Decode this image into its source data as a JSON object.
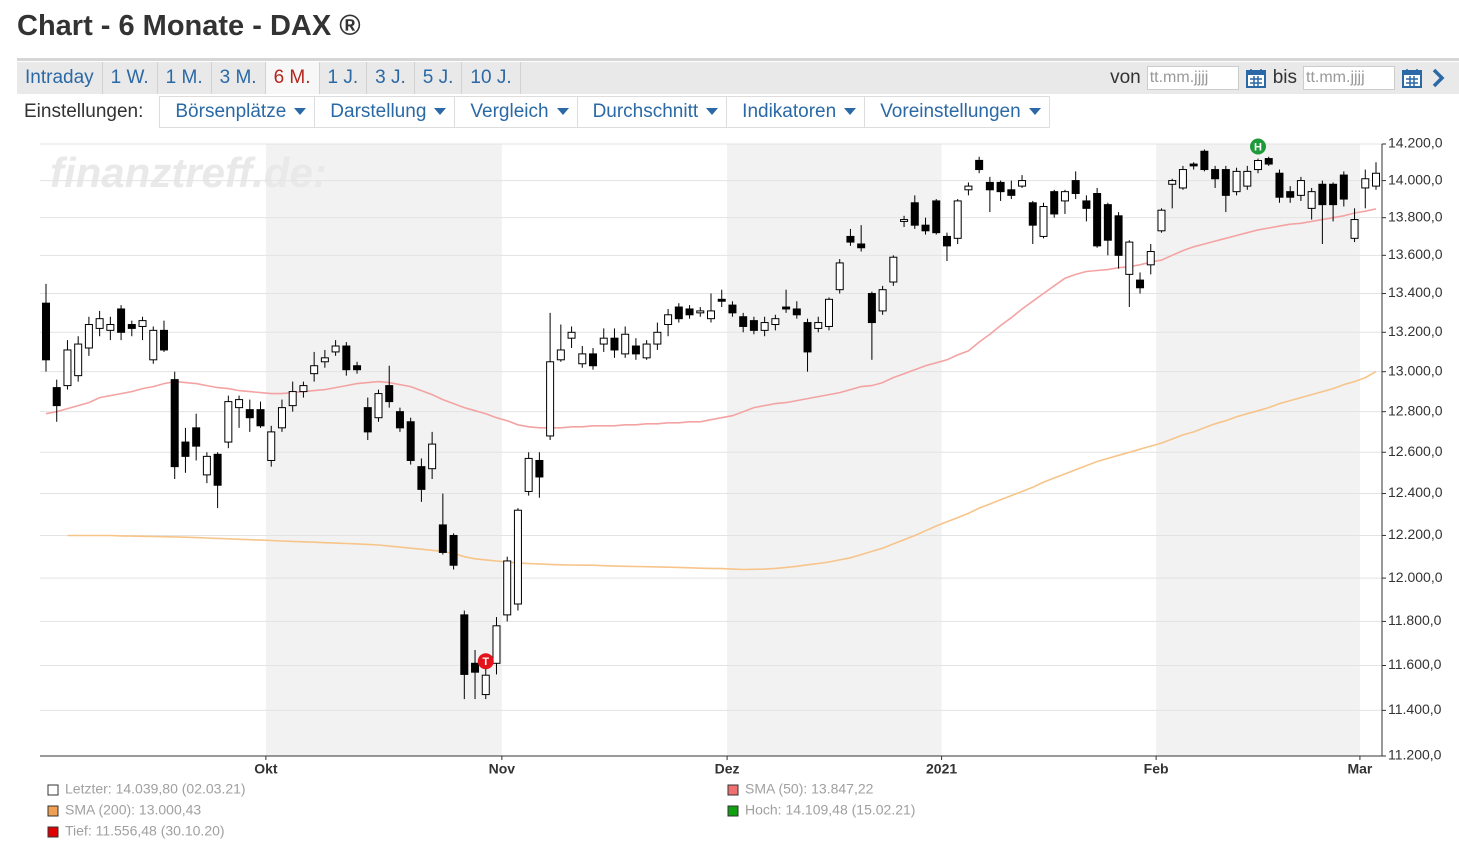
{
  "header": {
    "title": "Chart - 6 Monate - DAX ®"
  },
  "tabs": [
    {
      "label": "Intraday"
    },
    {
      "label": "1 W."
    },
    {
      "label": "1 M."
    },
    {
      "label": "3 M."
    },
    {
      "label": "6 M.",
      "active": true
    },
    {
      "label": "1 J."
    },
    {
      "label": "3 J."
    },
    {
      "label": "5 J."
    },
    {
      "label": "10 J."
    }
  ],
  "range": {
    "from_label": "von",
    "from_placeholder": "tt.mm.jjjj",
    "to_label": "bis",
    "to_placeholder": "tt.mm.jjjj"
  },
  "settings": {
    "label": "Einstellungen:",
    "menus": [
      "Börsenplätze",
      "Darstellung",
      "Vergleich",
      "Durchschnitt",
      "Indikatoren",
      "Voreinstellungen"
    ]
  },
  "chart_data": {
    "type": "candlestick",
    "watermark": "finanztreff.de:",
    "log": true,
    "grid": true,
    "ylim": [
      11200,
      14200
    ],
    "yticks": [
      {
        "value": 11200,
        "label": "11.200,0"
      },
      {
        "value": 11400,
        "label": "11.400,0"
      },
      {
        "value": 11600,
        "label": "11.600,0"
      },
      {
        "value": 11800,
        "label": "11.800,0"
      },
      {
        "value": 12000,
        "label": "12.000,0"
      },
      {
        "value": 12200,
        "label": "12.200,0"
      },
      {
        "value": 12400,
        "label": "12.400,0"
      },
      {
        "value": 12600,
        "label": "12.600,0"
      },
      {
        "value": 12800,
        "label": "12.800,0"
      },
      {
        "value": 13000,
        "label": "13.000,0"
      },
      {
        "value": 13200,
        "label": "13.200,0"
      },
      {
        "value": 13400,
        "label": "13.400,0"
      },
      {
        "value": 13600,
        "label": "13.600,0"
      },
      {
        "value": 13800,
        "label": "13.800,0"
      },
      {
        "value": 14000,
        "label": "14.000,0"
      },
      {
        "value": 14200,
        "label": "14.200,0"
      }
    ],
    "categories": [
      null,
      null,
      null,
      null,
      null,
      null,
      null,
      null,
      null,
      null,
      null,
      null,
      null,
      null,
      null,
      null,
      null,
      null,
      null,
      null,
      null,
      "Okt",
      null,
      null,
      null,
      null,
      null,
      null,
      null,
      null,
      null,
      null,
      null,
      null,
      null,
      null,
      null,
      null,
      null,
      null,
      null,
      null,
      null,
      "Nov",
      null,
      null,
      null,
      null,
      null,
      null,
      null,
      null,
      null,
      null,
      null,
      null,
      null,
      null,
      null,
      null,
      null,
      null,
      null,
      null,
      "Dez",
      null,
      null,
      null,
      null,
      null,
      null,
      null,
      null,
      null,
      null,
      null,
      null,
      null,
      null,
      null,
      null,
      null,
      null,
      null,
      "2021",
      null,
      null,
      null,
      null,
      null,
      null,
      null,
      null,
      null,
      null,
      null,
      null,
      null,
      null,
      null,
      null,
      null,
      null,
      null,
      "Feb",
      null,
      null,
      null,
      null,
      null,
      null,
      null,
      null,
      null,
      null,
      null,
      null,
      null,
      null,
      null,
      null,
      null,
      null,
      "Mar",
      null
    ],
    "ohlc": {
      "up_color": "#ffffff",
      "down_color": "#000000",
      "open": [
        13350,
        12920,
        12930,
        12980,
        13120,
        13220,
        13210,
        13320,
        13240,
        13230,
        13060,
        13210,
        12960,
        12650,
        12720,
        12490,
        12590,
        12650,
        12820,
        12810,
        12810,
        12560,
        12720,
        12830,
        12900,
        12990,
        13050,
        13100,
        13130,
        13030,
        12820,
        12770,
        12930,
        12800,
        12750,
        12530,
        12520,
        12250,
        12200,
        11830,
        11610,
        11470,
        11610,
        11830,
        11880,
        12410,
        12560,
        12680,
        13060,
        13170,
        13040,
        13090,
        13140,
        13170,
        13090,
        13130,
        13070,
        13140,
        13240,
        13330,
        13320,
        13300,
        13270,
        13370,
        13340,
        13280,
        13260,
        13210,
        13240,
        13330,
        13320,
        13250,
        13220,
        13230,
        13420,
        13700,
        13660,
        13400,
        13310,
        13460,
        13780,
        13880,
        13760,
        13890,
        13700,
        13690,
        13950,
        14110,
        13990,
        13990,
        13950,
        13970,
        13880,
        13700,
        13940,
        13890,
        14000,
        13890,
        13930,
        13870,
        13810,
        13500,
        13470,
        13550,
        13730,
        13980,
        13960,
        14090,
        14160,
        14060,
        14060,
        13940,
        13970,
        14060,
        14120,
        14040,
        13940,
        13920,
        13850,
        13980,
        13980,
        14030,
        13690,
        13960,
        13970
      ],
      "high": [
        13450,
        12960,
        13160,
        13180,
        13280,
        13310,
        13280,
        13340,
        13260,
        13280,
        13230,
        13260,
        13000,
        12720,
        12790,
        12600,
        12600,
        12880,
        12880,
        12860,
        12850,
        12730,
        12860,
        12950,
        12950,
        13100,
        13110,
        13160,
        13150,
        13050,
        12870,
        12910,
        13030,
        12820,
        12770,
        12570,
        12700,
        12400,
        12210,
        11850,
        11670,
        11620,
        11820,
        12100,
        12330,
        12600,
        12600,
        13300,
        13240,
        13230,
        13130,
        13120,
        13220,
        13220,
        13230,
        13170,
        13160,
        13250,
        13320,
        13350,
        13340,
        13330,
        13400,
        13420,
        13360,
        13300,
        13280,
        13280,
        13290,
        13420,
        13360,
        13270,
        13280,
        13380,
        13580,
        13740,
        13760,
        13410,
        13440,
        13600,
        13810,
        13920,
        13800,
        13900,
        13720,
        13900,
        13990,
        14130,
        14020,
        14000,
        14000,
        14030,
        13890,
        13880,
        13950,
        13950,
        14050,
        13920,
        13960,
        13880,
        13830,
        13680,
        13510,
        13660,
        13850,
        14010,
        14080,
        14100,
        14170,
        14080,
        14080,
        14070,
        14080,
        14120,
        14130,
        14060,
        13970,
        14020,
        13960,
        14000,
        13990,
        14050,
        13850,
        14060,
        14100
      ],
      "low": [
        13000,
        12750,
        12910,
        12950,
        13080,
        13180,
        13160,
        13160,
        13180,
        13160,
        13040,
        13100,
        12470,
        12500,
        12560,
        12450,
        12330,
        12620,
        12720,
        12700,
        12720,
        12530,
        12700,
        12800,
        12870,
        12950,
        13020,
        13080,
        12980,
        12990,
        12660,
        12750,
        12820,
        12700,
        12540,
        12360,
        12470,
        12110,
        12040,
        11450,
        11450,
        11450,
        11560,
        11800,
        11850,
        12390,
        12380,
        12660,
        13050,
        13120,
        13020,
        13010,
        13100,
        13070,
        13070,
        13060,
        13060,
        13110,
        13180,
        13250,
        13270,
        13280,
        13250,
        13330,
        13280,
        13200,
        13190,
        13180,
        13210,
        13300,
        13270,
        13000,
        13200,
        13210,
        13400,
        13650,
        13620,
        13060,
        13290,
        13440,
        13750,
        13740,
        13710,
        13710,
        13570,
        13660,
        13920,
        14040,
        13830,
        13890,
        13900,
        13960,
        13660,
        13690,
        13800,
        13820,
        13900,
        13780,
        13640,
        13600,
        13530,
        13330,
        13400,
        13500,
        13720,
        13850,
        13950,
        14060,
        14050,
        13960,
        13830,
        13920,
        13950,
        14040,
        14080,
        13880,
        13880,
        13890,
        13790,
        13660,
        13780,
        13860,
        13670,
        13850,
        13950
      ],
      "close": [
        13060,
        12830,
        13110,
        13140,
        13240,
        13270,
        13240,
        13200,
        13220,
        13260,
        13210,
        13110,
        12530,
        12580,
        12630,
        12580,
        12440,
        12850,
        12860,
        12770,
        12730,
        12700,
        12820,
        12900,
        12930,
        13030,
        13070,
        13130,
        13010,
        13010,
        12700,
        12890,
        12850,
        12720,
        12560,
        12420,
        12640,
        12120,
        12060,
        11560,
        11570,
        11556.48,
        11780,
        12080,
        12320,
        12570,
        12480,
        13050,
        13110,
        13200,
        13090,
        13030,
        13170,
        13110,
        13190,
        13090,
        13140,
        13200,
        13290,
        13270,
        13290,
        13310,
        13310,
        13360,
        13300,
        13230,
        13210,
        13250,
        13270,
        13320,
        13290,
        13100,
        13250,
        13370,
        13560,
        13670,
        13640,
        13250,
        13420,
        13590,
        13790,
        13760,
        13730,
        13720,
        13650,
        13890,
        13970,
        14060,
        13950,
        13940,
        13920,
        14000,
        13760,
        13860,
        13820,
        13940,
        13930,
        13850,
        13650,
        13680,
        13600,
        13670,
        13430,
        13620,
        13840,
        14000,
        14060,
        14080,
        14060,
        14010,
        13920,
        14050,
        14050,
        14109.48,
        14090,
        13910,
        13910,
        14000,
        13940,
        13870,
        13870,
        13900,
        13790,
        14010,
        14039.8
      ]
    },
    "lines": [
      {
        "color": "#f4a3a3",
        "values": [
          12790,
          12800,
          12815,
          12830,
          12845,
          12870,
          12880,
          12890,
          12900,
          12915,
          12925,
          12940,
          12950,
          12945,
          12940,
          12930,
          12920,
          12915,
          12905,
          12900,
          12895,
          12890,
          12890,
          12895,
          12900,
          12905,
          12910,
          12920,
          12930,
          12940,
          12945,
          12950,
          12945,
          12935,
          12925,
          12905,
          12885,
          12860,
          12840,
          12820,
          12805,
          12790,
          12770,
          12755,
          12735,
          12725,
          12720,
          12720,
          12720,
          12725,
          12725,
          12730,
          12730,
          12730,
          12735,
          12735,
          12740,
          12740,
          12745,
          12745,
          12750,
          12750,
          12760,
          12770,
          12780,
          12800,
          12820,
          12830,
          12840,
          12845,
          12855,
          12865,
          12875,
          12885,
          12895,
          12910,
          12925,
          12930,
          12945,
          12970,
          12990,
          13010,
          13030,
          13045,
          13060,
          13085,
          13105,
          13150,
          13190,
          13235,
          13275,
          13320,
          13360,
          13400,
          13440,
          13480,
          13500,
          13515,
          13520,
          13525,
          13535,
          13540,
          13550,
          13565,
          13575,
          13600,
          13625,
          13645,
          13660,
          13675,
          13690,
          13705,
          13720,
          13735,
          13745,
          13755,
          13765,
          13770,
          13780,
          13790,
          13800,
          13810,
          13825,
          13835,
          13847.22
        ]
      },
      {
        "color": "#f7c48a",
        "values": [
          null,
          null,
          12200,
          12200,
          12200,
          12200,
          12200,
          12198,
          12197,
          12196,
          12195,
          12194,
          12193,
          12192,
          12190,
          12188,
          12186,
          12184,
          12182,
          12180,
          12178,
          12176,
          12174,
          12172,
          12170,
          12168,
          12166,
          12164,
          12162,
          12160,
          12158,
          12155,
          12150,
          12145,
          12140,
          12135,
          12130,
          12125,
          12115,
          12100,
          12090,
          12085,
          12080,
          12075,
          12070,
          12068,
          12066,
          12064,
          12062,
          12061,
          12060,
          12060,
          12058,
          12056,
          12055,
          12054,
          12053,
          12052,
          12051,
          12050,
          12048,
          12046,
          12045,
          12044,
          12042,
          12040,
          12041,
          12042,
          12045,
          12050,
          12055,
          12062,
          12068,
          12075,
          12085,
          12095,
          12110,
          12125,
          12140,
          12160,
          12180,
          12200,
          12222,
          12245,
          12265,
          12285,
          12305,
          12330,
          12350,
          12370,
          12390,
          12410,
          12430,
          12455,
          12475,
          12495,
          12515,
          12535,
          12555,
          12570,
          12585,
          12600,
          12615,
          12630,
          12645,
          12665,
          12685,
          12700,
          12720,
          12740,
          12755,
          12775,
          12790,
          12805,
          12820,
          12840,
          12855,
          12870,
          12885,
          12900,
          12915,
          12935,
          12950,
          12970,
          13000.43
        ]
      }
    ],
    "annotations": [
      {
        "text": "T",
        "value": 11556.48,
        "color": "#e3141b"
      },
      {
        "text": "H",
        "value": 14109.48,
        "color": "#1f9a3a"
      }
    ],
    "legend": {
      "left": [
        {
          "label": "Letzter: 14.039,80 (02.03.21)",
          "color": "#ffffff"
        },
        {
          "label": "SMA (200): 13.000,43",
          "color": "#f0a050"
        },
        {
          "label": "Tief: 11.556,48 (30.10.20)",
          "color": "#e00000"
        }
      ],
      "right": [
        {
          "label": "SMA (50): 13.847,22",
          "color": "#f07070"
        },
        {
          "label": "Hoch: 14.109,48 (15.02.21)",
          "color": "#10a010"
        }
      ]
    }
  }
}
